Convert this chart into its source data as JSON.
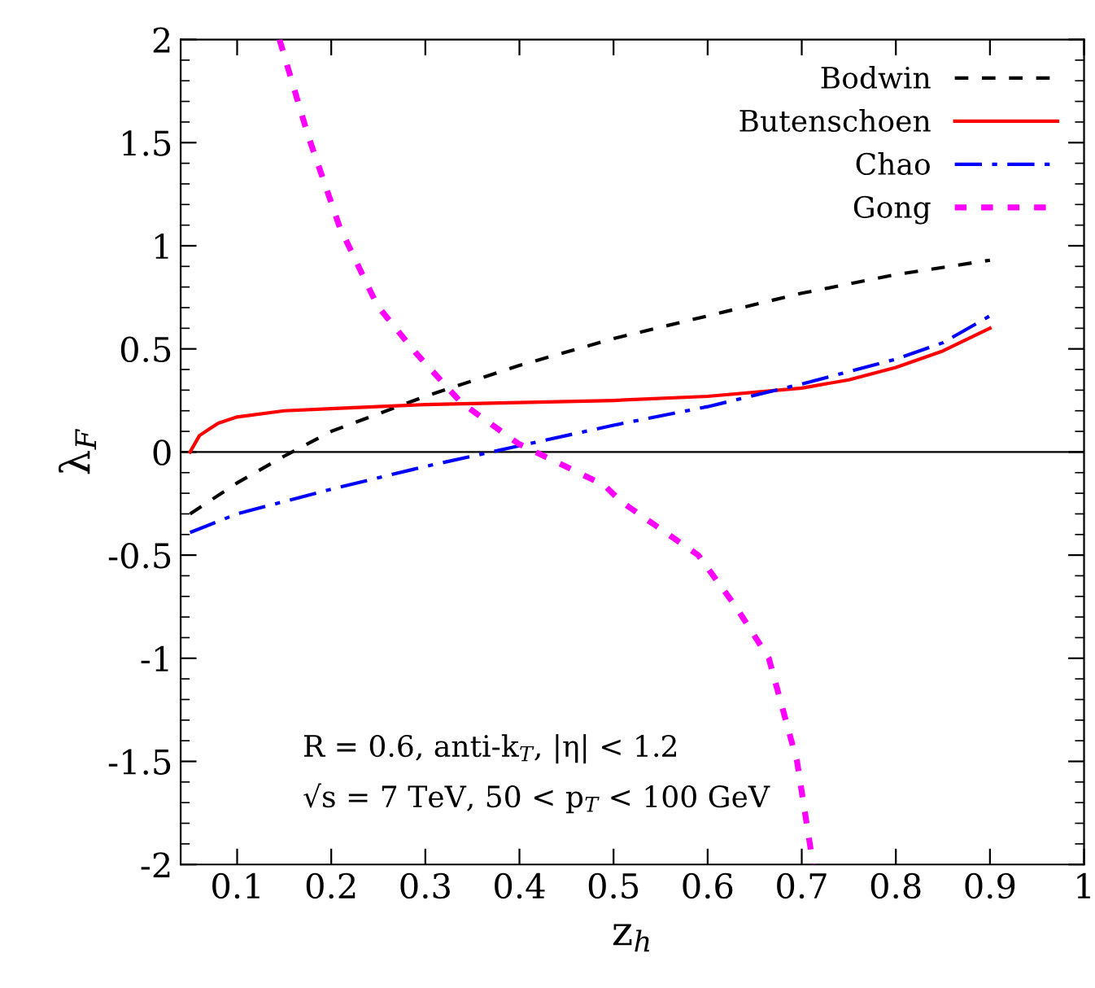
{
  "chart_data": {
    "type": "line",
    "xlabel": "z$_{h}$",
    "ylabel": "λ$_{F}$",
    "xlim": [
      0.04,
      1
    ],
    "ylim": [
      -2,
      2
    ],
    "xticks": [
      0.1,
      0.2,
      0.3,
      0.4,
      0.5,
      0.6,
      0.7,
      0.8,
      0.9,
      1
    ],
    "yticks": [
      -2,
      -1.5,
      -1,
      -0.5,
      0,
      0.5,
      1,
      1.5,
      2
    ],
    "grid": false,
    "legend": "top right",
    "marker": "none",
    "ref_lines": [
      {
        "axis": "y",
        "value": 0,
        "color": "#000000"
      }
    ],
    "annotations": [
      "R = 0.6, anti-k$_{T}$, |η| < 1.2",
      "√s = 7 TeV, 50 < p$_{T}$ < 100 GeV"
    ],
    "series": [
      {
        "name": "Bodwin",
        "color": "#000000",
        "line_style": "dashed",
        "x": [
          0.05,
          0.1,
          0.15,
          0.2,
          0.3,
          0.4,
          0.5,
          0.6,
          0.7,
          0.8,
          0.9
        ],
        "values": [
          -0.3,
          -0.15,
          -0.02,
          0.1,
          0.27,
          0.42,
          0.55,
          0.66,
          0.77,
          0.86,
          0.93
        ]
      },
      {
        "name": "Butenschoen",
        "color": "#ff0000",
        "line_style": "solid",
        "x": [
          0.05,
          0.06,
          0.08,
          0.1,
          0.15,
          0.2,
          0.3,
          0.4,
          0.5,
          0.6,
          0.7,
          0.75,
          0.8,
          0.85,
          0.9
        ],
        "values": [
          0,
          0.08,
          0.14,
          0.17,
          0.2,
          0.21,
          0.23,
          0.24,
          0.25,
          0.27,
          0.31,
          0.35,
          0.41,
          0.49,
          0.6
        ]
      },
      {
        "name": "Chao",
        "color": "#0000ff",
        "line_style": "dashdot",
        "x": [
          0.05,
          0.1,
          0.2,
          0.3,
          0.35,
          0.4,
          0.5,
          0.6,
          0.7,
          0.8,
          0.85,
          0.9
        ],
        "values": [
          -0.39,
          -0.3,
          -0.18,
          -0.07,
          -0.02,
          0.03,
          0.13,
          0.22,
          0.33,
          0.45,
          0.53,
          0.66
        ]
      },
      {
        "name": "Gong",
        "color": "#ff00ff",
        "line_style": "dotted",
        "x": [
          0.145,
          0.175,
          0.209,
          0.249,
          0.29,
          0.338,
          0.399,
          0.49,
          0.508,
          0.59,
          0.63,
          0.665,
          0.695,
          0.712
        ],
        "values": [
          2.0,
          1.54,
          1.09,
          0.71,
          0.48,
          0.24,
          0.04,
          -0.16,
          -0.24,
          -0.5,
          -0.75,
          -1.0,
          -1.5,
          -2.0
        ]
      }
    ]
  }
}
